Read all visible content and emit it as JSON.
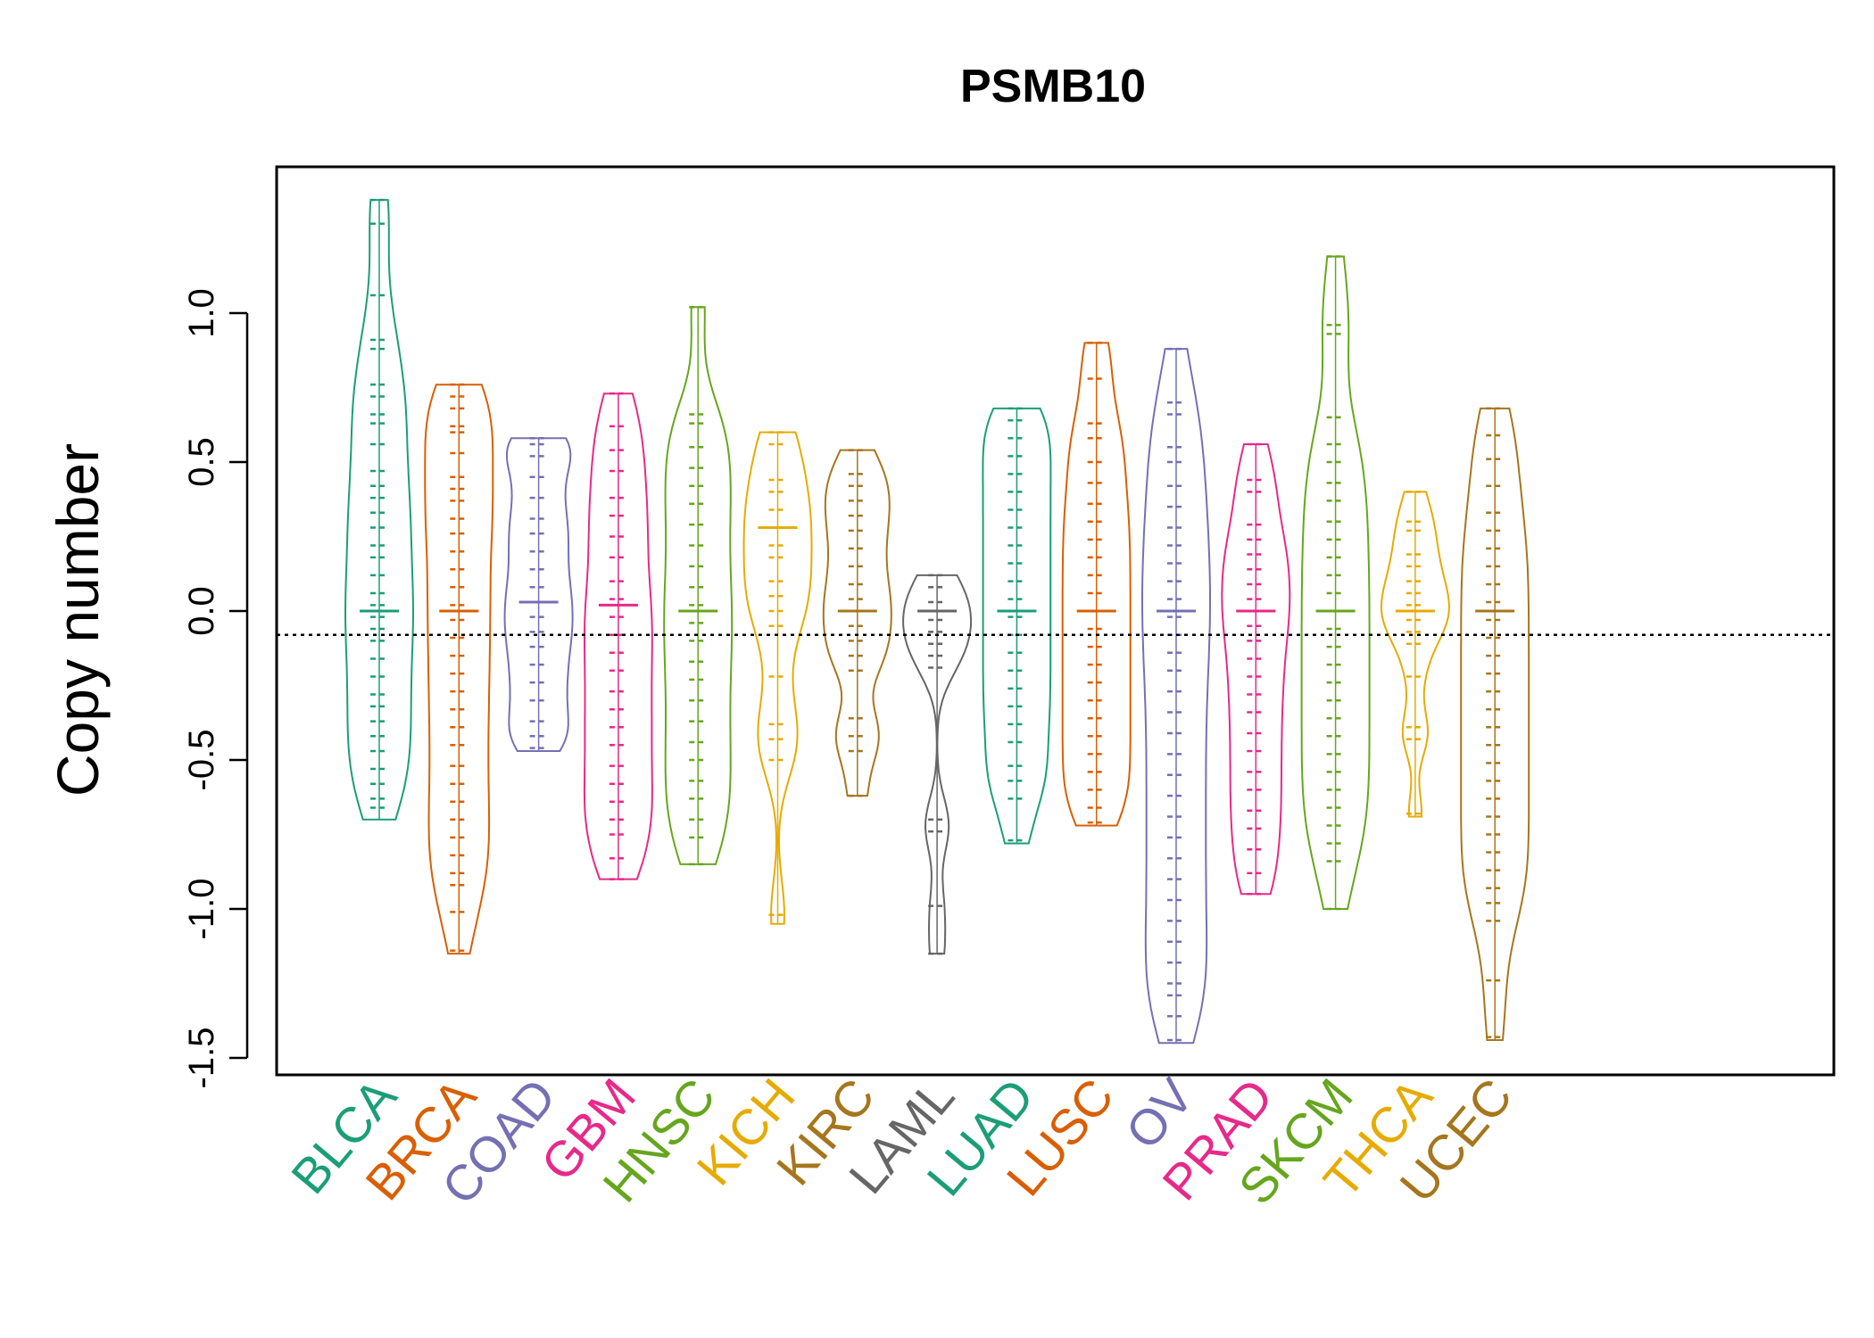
{
  "chart_data": {
    "type": "beanplot",
    "title": "PSMB10",
    "ylabel": "Copy number",
    "xlabel": "",
    "ylim": [
      -1.55,
      1.45
    ],
    "yticks": [
      -1.5,
      -1.0,
      -0.5,
      0.0,
      0.5,
      1.0
    ],
    "ytick_labels": [
      "-1.5",
      "-1.0",
      "-0.5",
      "0.0",
      "0.5",
      "1.0"
    ],
    "reference_line": -0.08,
    "categories": [
      "BLCA",
      "BRCA",
      "COAD",
      "GBM",
      "HNSC",
      "KICH",
      "KIRC",
      "LAML",
      "LUAD",
      "LUSC",
      "OV",
      "PRAD",
      "SKCM",
      "THCA",
      "UCEC"
    ],
    "colors": [
      "#1B9E77",
      "#D95F02",
      "#7570B3",
      "#E7298A",
      "#66A61E",
      "#E6AB02",
      "#A6761D",
      "#666666",
      "#1B9E77",
      "#D95F02",
      "#7570B3",
      "#E7298A",
      "#66A61E",
      "#E6AB02",
      "#A6761D"
    ],
    "series": [
      {
        "name": "BLCA",
        "median": 0.0,
        "min": -0.7,
        "max": 1.38,
        "points": [
          1.38,
          1.3,
          1.06,
          0.91,
          0.88,
          0.76,
          0.72,
          0.66,
          0.63,
          0.56,
          0.47,
          0.42,
          0.38,
          0.33,
          0.28,
          0.22,
          0.18,
          0.12,
          0.06,
          0.02,
          -0.02,
          -0.06,
          -0.1,
          -0.16,
          -0.22,
          -0.28,
          -0.32,
          -0.37,
          -0.42,
          -0.47,
          -0.53,
          -0.58,
          -0.63,
          -0.66
        ]
      },
      {
        "name": "BRCA",
        "median": 0.0,
        "min": -1.15,
        "max": 0.76,
        "points": [
          0.76,
          0.72,
          0.68,
          0.62,
          0.6,
          0.53,
          0.45,
          0.41,
          0.37,
          0.31,
          0.26,
          0.2,
          0.14,
          0.08,
          0.02,
          -0.03,
          -0.09,
          -0.15,
          -0.21,
          -0.27,
          -0.33,
          -0.39,
          -0.45,
          -0.52,
          -0.58,
          -0.64,
          -0.7,
          -0.76,
          -0.82,
          -0.88,
          -0.92,
          -1.01,
          -1.14
        ]
      },
      {
        "name": "COAD",
        "median": 0.03,
        "min": -0.47,
        "max": 0.58,
        "points": [
          0.58,
          0.56,
          0.52,
          0.45,
          0.38,
          0.31,
          0.26,
          0.2,
          0.14,
          0.08,
          0.03,
          -0.02,
          -0.07,
          -0.12,
          -0.18,
          -0.24,
          -0.3,
          -0.37,
          -0.42,
          -0.46
        ]
      },
      {
        "name": "GBM",
        "median": 0.02,
        "min": -0.9,
        "max": 0.73,
        "points": [
          0.73,
          0.62,
          0.54,
          0.47,
          0.38,
          0.32,
          0.25,
          0.18,
          0.1,
          0.04,
          -0.02,
          -0.08,
          -0.14,
          -0.2,
          -0.27,
          -0.33,
          -0.39,
          -0.45,
          -0.52,
          -0.58,
          -0.64,
          -0.7,
          -0.75,
          -0.83,
          -0.9
        ]
      },
      {
        "name": "HNSC",
        "median": 0.0,
        "min": -0.85,
        "max": 1.02,
        "points": [
          1.02,
          0.66,
          0.63,
          0.55,
          0.48,
          0.42,
          0.36,
          0.29,
          0.22,
          0.15,
          0.08,
          0.02,
          -0.04,
          -0.1,
          -0.17,
          -0.23,
          -0.3,
          -0.37,
          -0.44,
          -0.5,
          -0.57,
          -0.63,
          -0.7,
          -0.76,
          -0.85
        ]
      },
      {
        "name": "KICH",
        "median": 0.28,
        "min": -1.05,
        "max": 0.6,
        "points": [
          0.6,
          0.56,
          0.44,
          0.4,
          0.34,
          0.28,
          0.22,
          0.18,
          0.1,
          0.05,
          0.0,
          -0.05,
          -0.22,
          -0.38,
          -0.43,
          -0.5,
          -1.02
        ]
      },
      {
        "name": "KIRC",
        "median": 0.0,
        "min": -0.62,
        "max": 0.54,
        "points": [
          0.54,
          0.46,
          0.42,
          0.37,
          0.32,
          0.27,
          0.21,
          0.15,
          0.09,
          0.04,
          0.0,
          -0.05,
          -0.1,
          -0.15,
          -0.2,
          -0.36,
          -0.42,
          -0.47,
          -0.62
        ]
      },
      {
        "name": "LAML",
        "median": 0.0,
        "min": -1.15,
        "max": 0.12,
        "points": [
          0.12,
          0.08,
          0.03,
          0.0,
          -0.03,
          -0.07,
          -0.11,
          -0.15,
          -0.19,
          -0.7,
          -0.74,
          -0.99,
          -1.15
        ]
      },
      {
        "name": "LUAD",
        "median": 0.0,
        "min": -0.78,
        "max": 0.68,
        "points": [
          0.68,
          0.64,
          0.58,
          0.52,
          0.46,
          0.4,
          0.34,
          0.28,
          0.22,
          0.16,
          0.1,
          0.04,
          -0.02,
          -0.08,
          -0.14,
          -0.2,
          -0.26,
          -0.32,
          -0.38,
          -0.44,
          -0.52,
          -0.57,
          -0.63,
          -0.77
        ]
      },
      {
        "name": "LUSC",
        "median": 0.0,
        "min": -0.72,
        "max": 0.9,
        "points": [
          0.9,
          0.78,
          0.63,
          0.58,
          0.5,
          0.43,
          0.36,
          0.3,
          0.24,
          0.18,
          0.12,
          0.06,
          0.0,
          -0.06,
          -0.12,
          -0.18,
          -0.24,
          -0.3,
          -0.36,
          -0.42,
          -0.48,
          -0.54,
          -0.6,
          -0.66,
          -0.71
        ]
      },
      {
        "name": "OV",
        "median": 0.0,
        "min": -1.45,
        "max": 0.88,
        "points": [
          0.88,
          0.7,
          0.66,
          0.55,
          0.5,
          0.42,
          0.35,
          0.28,
          0.22,
          0.16,
          0.1,
          0.04,
          -0.02,
          -0.08,
          -0.14,
          -0.2,
          -0.27,
          -0.34,
          -0.41,
          -0.48,
          -0.55,
          -0.62,
          -0.69,
          -0.76,
          -0.83,
          -0.9,
          -0.97,
          -1.04,
          -1.11,
          -1.18,
          -1.25,
          -1.29,
          -1.36,
          -1.44
        ]
      },
      {
        "name": "PRAD",
        "median": 0.0,
        "min": -0.95,
        "max": 0.56,
        "points": [
          0.56,
          0.44,
          0.4,
          0.29,
          0.24,
          0.19,
          0.14,
          0.09,
          0.04,
          0.0,
          -0.05,
          -0.1,
          -0.16,
          -0.22,
          -0.28,
          -0.34,
          -0.41,
          -0.47,
          -0.54,
          -0.6,
          -0.67,
          -0.73,
          -0.8,
          -0.88,
          -0.95
        ]
      },
      {
        "name": "SKCM",
        "median": 0.0,
        "min": -1.0,
        "max": 1.19,
        "points": [
          1.19,
          0.96,
          0.93,
          0.65,
          0.56,
          0.5,
          0.43,
          0.37,
          0.3,
          0.24,
          0.18,
          0.12,
          0.06,
          0.0,
          -0.06,
          -0.12,
          -0.18,
          -0.24,
          -0.3,
          -0.36,
          -0.42,
          -0.48,
          -0.54,
          -0.6,
          -0.66,
          -0.72,
          -0.78,
          -0.84,
          -1.0
        ]
      },
      {
        "name": "THCA",
        "median": 0.0,
        "min": -0.69,
        "max": 0.4,
        "points": [
          0.4,
          0.3,
          0.27,
          0.19,
          0.15,
          0.1,
          0.06,
          0.02,
          0.0,
          -0.03,
          -0.07,
          -0.11,
          -0.22,
          -0.39,
          -0.43,
          -0.68
        ]
      },
      {
        "name": "UCEC",
        "median": 0.0,
        "min": -1.44,
        "max": 0.68,
        "points": [
          0.68,
          0.59,
          0.51,
          0.42,
          0.33,
          0.27,
          0.21,
          0.15,
          0.09,
          0.03,
          -0.03,
          -0.09,
          -0.15,
          -0.21,
          -0.27,
          -0.33,
          -0.39,
          -0.45,
          -0.51,
          -0.57,
          -0.63,
          -0.69,
          -0.75,
          -0.81,
          -0.87,
          -0.93,
          -0.98,
          -1.04,
          -1.24,
          -1.43
        ]
      }
    ]
  }
}
